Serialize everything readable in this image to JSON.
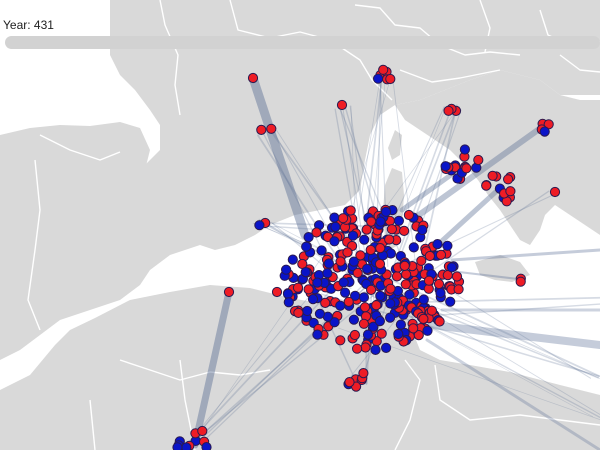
{
  "header": {
    "year_text": "Year: 431",
    "year": 431
  },
  "map": {
    "land_color": "#d9d9d9",
    "sea_color": "#ffffff",
    "border_color": "#ffffff",
    "link_color": "#5a6e94",
    "node_colors": {
      "red": "#ee1c25",
      "blue": "#0a14c8",
      "stroke": "#2a1a50"
    }
  }
}
